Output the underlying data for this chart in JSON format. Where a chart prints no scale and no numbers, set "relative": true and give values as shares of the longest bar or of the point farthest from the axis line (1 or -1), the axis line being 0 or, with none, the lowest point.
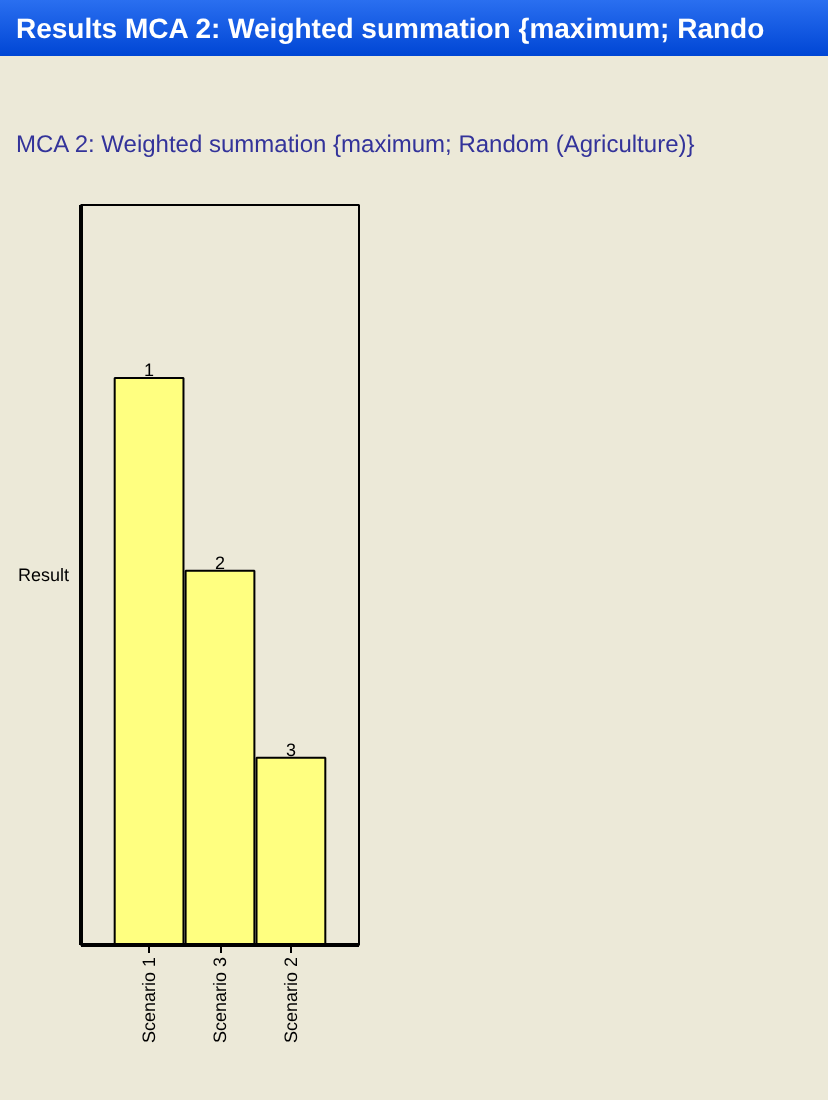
{
  "chart_data": {
    "type": "bar",
    "title": "Results MCA 2: Weighted summation {maximum; Rando",
    "subtitle": "MCA 2: Weighted summation {maximum; Random (Agriculture)}",
    "ylabel": "Result",
    "categories": [
      "Scenario 1",
      "Scenario 3",
      "Scenario 2"
    ],
    "values": [
      1,
      0.66,
      0.33
    ],
    "color": "#ffff80",
    "relative": true,
    "annotations": [
      {
        "text": "1",
        "x": "Scenario 1",
        "y": 1
      },
      {
        "text": "2",
        "x": "Scenario 3",
        "y": 0.66
      },
      {
        "text": "3",
        "x": "Scenario 2",
        "y": 0.33
      }
    ]
  }
}
